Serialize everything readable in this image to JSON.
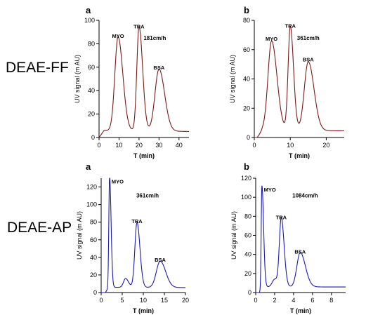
{
  "rows": [
    {
      "label": "DEAE-FF"
    },
    {
      "label": "DEAE-AP"
    }
  ],
  "chart_data": [
    {
      "type": "line",
      "panel_letter": "a",
      "xlabel": "T (min)",
      "ylabel": "UV signal (m AU)",
      "xlim": [
        0,
        45
      ],
      "ylim": [
        0,
        100
      ],
      "xticks": [
        0,
        10,
        20,
        30,
        40
      ],
      "yticks": [
        0,
        20,
        40,
        60,
        80,
        100
      ],
      "velocity": "181cm/h",
      "line_color": "#7a1a1a",
      "baseline": {
        "start": 0,
        "rise": 2.5,
        "level": 6
      },
      "peaks": [
        {
          "x": 9.5,
          "y": 80,
          "sigma_l": 1.6,
          "sigma_r": 2.4
        },
        {
          "x": 20,
          "y": 89,
          "sigma_l": 1.1,
          "sigma_r": 1.8
        },
        {
          "x": 30,
          "y": 53,
          "sigma_l": 2.0,
          "sigma_r": 2.8
        }
      ],
      "peak_labels": [
        {
          "text": "MYO",
          "x": 9.5,
          "y": 85
        },
        {
          "text": "TRA",
          "x": 20,
          "y": 93
        },
        {
          "text": "BSA",
          "x": 30,
          "y": 58
        }
      ]
    },
    {
      "type": "line",
      "panel_letter": "b",
      "xlabel": "T (min)",
      "ylabel": "UV signal (m AU)",
      "xlim": [
        0,
        25
      ],
      "ylim": [
        0,
        80
      ],
      "xticks": [
        0,
        10,
        20
      ],
      "yticks": [
        0,
        20,
        40,
        60,
        80
      ],
      "velocity": "361cm/h",
      "line_color": "#7a1a1a",
      "baseline": {
        "start": 0.8,
        "rise": 1.5,
        "level": 5
      },
      "peaks": [
        {
          "x": 4.8,
          "y": 61,
          "sigma_l": 1.0,
          "sigma_r": 1.5
        },
        {
          "x": 10,
          "y": 71,
          "sigma_l": 0.6,
          "sigma_r": 0.9
        },
        {
          "x": 15,
          "y": 47,
          "sigma_l": 1.1,
          "sigma_r": 1.6
        }
      ],
      "peak_labels": [
        {
          "text": "MYO",
          "x": 4.8,
          "y": 66
        },
        {
          "text": "TRA",
          "x": 10,
          "y": 75
        },
        {
          "text": "BSA",
          "x": 15,
          "y": 52
        }
      ]
    },
    {
      "type": "line",
      "panel_letter": "a",
      "xlabel": "T (min)",
      "ylabel": "UV signal (m AU)",
      "xlim": [
        0,
        20
      ],
      "ylim": [
        0,
        130
      ],
      "xticks": [
        0,
        5,
        10,
        15,
        20
      ],
      "yticks": [
        0,
        20,
        40,
        60,
        80,
        100,
        120
      ],
      "velocity": "361cm/h",
      "line_color": "#1a1ab0",
      "baseline": {
        "start": 1.0,
        "rise": 0.8,
        "level": 6
      },
      "peaks": [
        {
          "x": 2.0,
          "y": 126,
          "sigma_l": 0.18,
          "sigma_r": 0.35
        },
        {
          "x": 5.8,
          "y": 10,
          "sigma_l": 0.5,
          "sigma_r": 0.7
        },
        {
          "x": 8.5,
          "y": 74,
          "sigma_l": 0.5,
          "sigma_r": 0.7
        },
        {
          "x": 14,
          "y": 30,
          "sigma_l": 0.9,
          "sigma_r": 1.3
        }
      ],
      "peak_labels": [
        {
          "text": "MYO",
          "x": 3.9,
          "y": 124
        },
        {
          "text": "TRA",
          "x": 8.5,
          "y": 79
        },
        {
          "text": "BSA",
          "x": 14,
          "y": 35
        }
      ]
    },
    {
      "type": "line",
      "panel_letter": "b",
      "xlabel": "T (min)",
      "ylabel": "UV signal (m AU)",
      "xlim": [
        0,
        9.5
      ],
      "ylim": [
        0,
        120
      ],
      "xticks": [
        0,
        2,
        4,
        6,
        8
      ],
      "yticks": [
        0,
        20,
        40,
        60,
        80,
        100,
        120
      ],
      "velocity": "1084cm/h",
      "line_color": "#1a1ab0",
      "baseline": {
        "start": 0.4,
        "rise": 0.3,
        "level": 6
      },
      "peaks": [
        {
          "x": 0.65,
          "y": 107,
          "sigma_l": 0.07,
          "sigma_r": 0.18
        },
        {
          "x": 2.0,
          "y": 8,
          "sigma_l": 0.25,
          "sigma_r": 0.35
        },
        {
          "x": 2.7,
          "y": 72,
          "sigma_l": 0.2,
          "sigma_r": 0.3
        },
        {
          "x": 4.7,
          "y": 36,
          "sigma_l": 0.35,
          "sigma_r": 0.55
        }
      ],
      "peak_labels": [
        {
          "text": "MYO",
          "x": 1.5,
          "y": 106
        },
        {
          "text": "TRA",
          "x": 2.7,
          "y": 77
        },
        {
          "text": "BSA",
          "x": 4.7,
          "y": 41
        }
      ]
    }
  ]
}
